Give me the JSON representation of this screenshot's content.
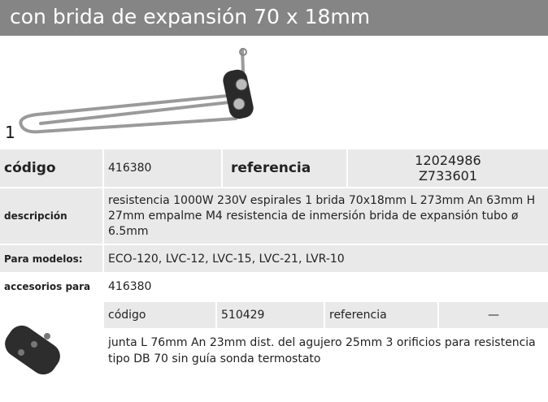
{
  "header": {
    "title": "con brida de expansión 70 x 18mm"
  },
  "image": {
    "label": "1"
  },
  "table": {
    "code_label": "código",
    "code": "416380",
    "reference_label": "referencia",
    "references": [
      "12024986",
      "Z733601"
    ],
    "description_label": "descripción",
    "description": "resistencia  1000W 230V espirales 1 brida 70x18mm L 273mm An 63mm H 27mm empalme M4 resistencia de inmersión brida de expansión tubo ø 6.5mm",
    "models_label": "Para modelos:",
    "models": "ECO-120, LVC-12, LVC-15, LVC-21, LVR-10",
    "accessories_label": "accesorios para",
    "accessories": "416380"
  },
  "accessory": {
    "code_label": "código",
    "code": "510429",
    "reference_label": "referencia",
    "reference": "—",
    "description": "junta  L 76mm An 23mm dist. del agujero 25mm 3 orificios para resistencia tipo DB 70 sin guía sonda termostato"
  }
}
